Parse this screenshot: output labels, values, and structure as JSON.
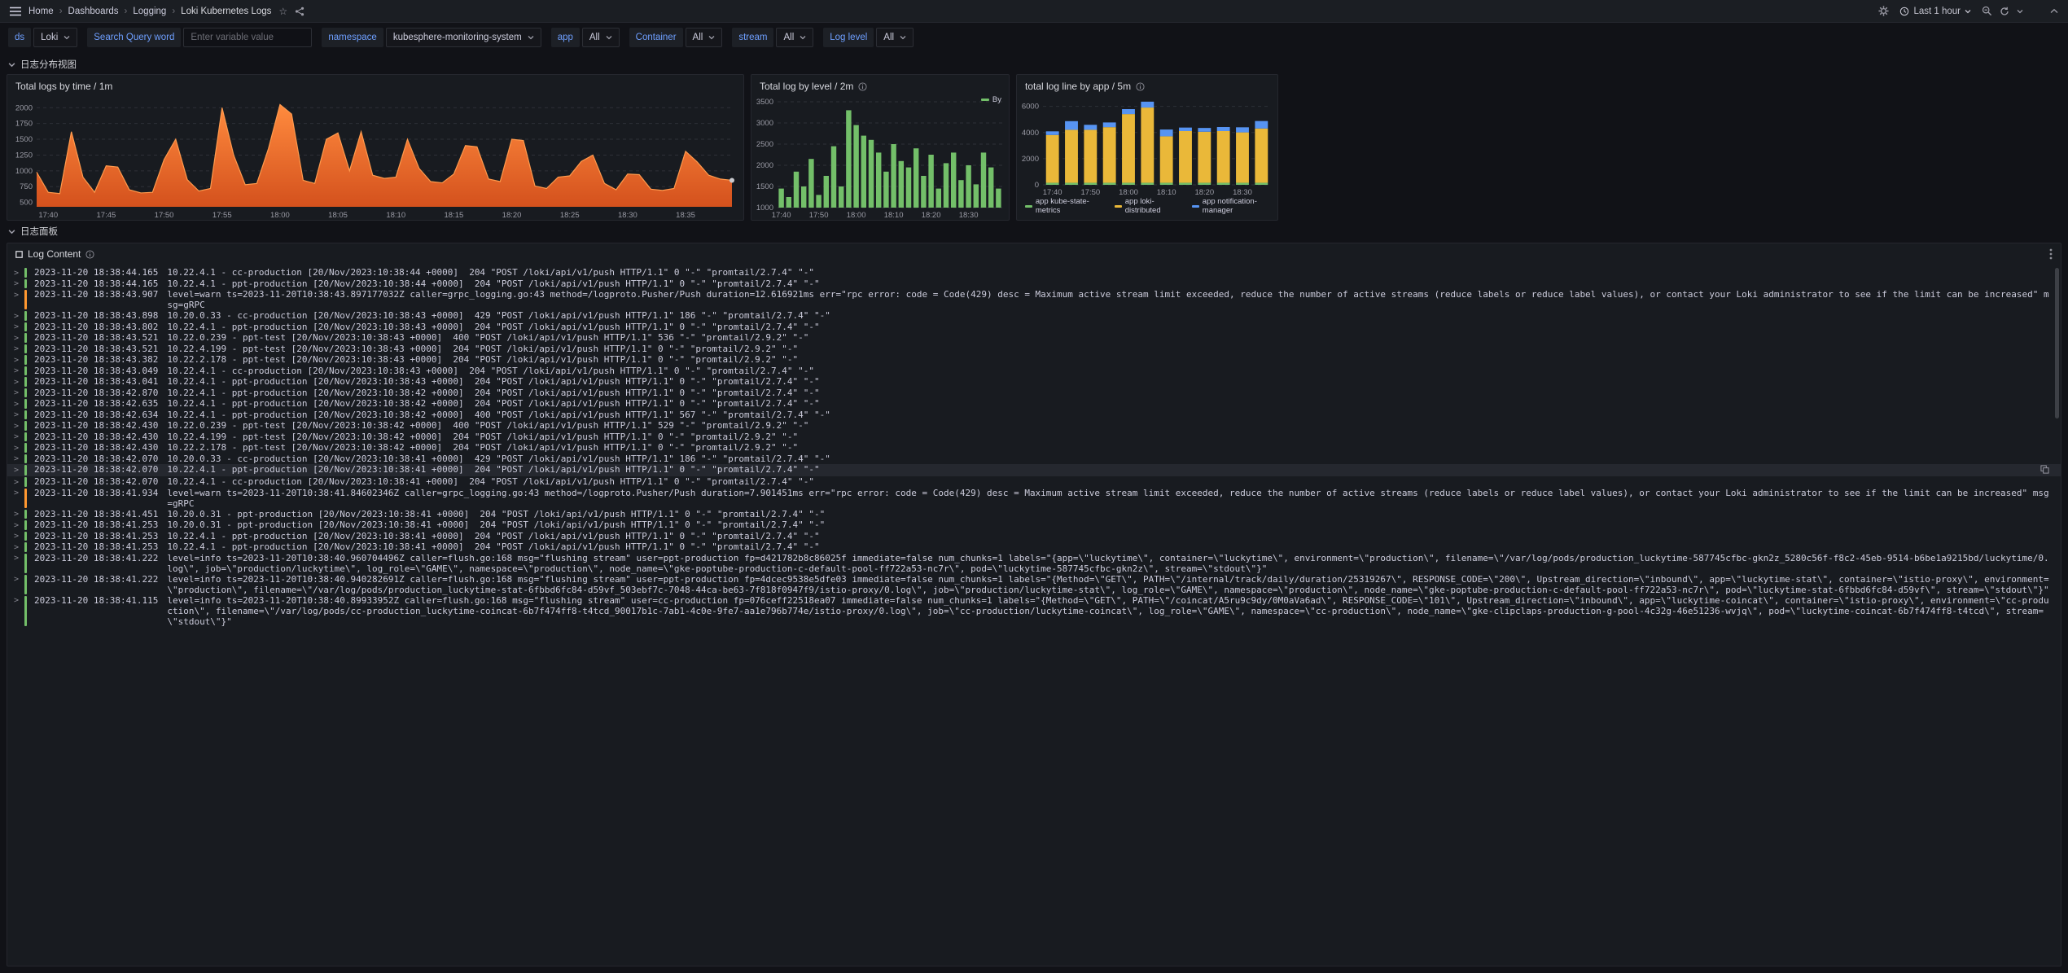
{
  "nav": {
    "breadcrumb": [
      "Home",
      "Dashboards",
      "Logging",
      "Loki Kubernetes Logs"
    ],
    "time_range": "Last 1 hour"
  },
  "filters": [
    {
      "label": "ds",
      "value": "Loki"
    },
    {
      "label": "Search Query word",
      "value": "",
      "placeholder": "Enter variable value"
    },
    {
      "label": "namespace",
      "value": "kubesphere-monitoring-system"
    },
    {
      "label": "app",
      "value": "All"
    },
    {
      "label": "Container",
      "value": "All"
    },
    {
      "label": "stream",
      "value": "All"
    },
    {
      "label": "Log level",
      "value": "All"
    }
  ],
  "rows": {
    "distribution": "日志分布视图",
    "logs": "日志面板"
  },
  "theme": {
    "accent_blue": "#6e9fff",
    "orange": "#ff780a",
    "green": "#73bf69",
    "yellow": "#eab839",
    "blue": "#5794f2",
    "warn_orange": "#ff9830"
  },
  "chart_data": [
    {
      "type": "area",
      "title": "Total logs by time / 1m",
      "x_ticks": [
        "17:40",
        "17:45",
        "17:50",
        "17:55",
        "18:00",
        "18:05",
        "18:10",
        "18:15",
        "18:20",
        "18:25",
        "18:30",
        "18:35"
      ],
      "x_tick_idx": [
        1,
        6,
        11,
        16,
        21,
        26,
        31,
        36,
        41,
        46,
        51,
        56
      ],
      "y_ticks": [
        500,
        750,
        1000,
        1250,
        1500,
        1750,
        2000
      ],
      "ylim": [
        430,
        2120
      ],
      "line_color": "#ff9a4d",
      "fill_color": "#ff780a",
      "values": [
        980,
        660,
        640,
        1620,
        900,
        660,
        1080,
        1060,
        700,
        650,
        660,
        1180,
        1500,
        860,
        680,
        720,
        2000,
        1250,
        780,
        800,
        1350,
        2050,
        1900,
        850,
        800,
        1500,
        1600,
        1000,
        1620,
        930,
        880,
        900,
        1500,
        1040,
        830,
        810,
        950,
        1400,
        1380,
        870,
        830,
        1500,
        1480,
        760,
        720,
        900,
        920,
        1150,
        1250,
        800,
        700,
        950,
        940,
        710,
        690,
        720,
        1310,
        1140,
        930,
        870,
        850
      ]
    },
    {
      "type": "bar",
      "title": "Total log by level / 2m",
      "legend": [
        {
          "label": "By",
          "color": "#73bf69"
        }
      ],
      "x_ticks": [
        "17:40",
        "17:50",
        "18:00",
        "18:10",
        "18:20",
        "18:30"
      ],
      "x_tick_idx": [
        0,
        5,
        10,
        15,
        20,
        25
      ],
      "y_ticks": [
        1000,
        1500,
        2000,
        2500,
        3000,
        3500
      ],
      "ylim": [
        1000,
        3500
      ],
      "color": "#73bf69",
      "values": [
        1450,
        1250,
        1850,
        1500,
        2150,
        1300,
        1750,
        2450,
        1500,
        3300,
        2950,
        2700,
        2600,
        2300,
        1850,
        2500,
        2100,
        1950,
        2400,
        1750,
        2250,
        1450,
        2050,
        2300,
        1650,
        2000,
        1550,
        2300,
        1950,
        1450
      ]
    },
    {
      "type": "stacked-bar",
      "title": "total log line by app / 5m",
      "x_ticks": [
        "17:40",
        "17:50",
        "18:00",
        "18:10",
        "18:20",
        "18:30"
      ],
      "x_tick_idx": [
        0,
        2,
        4,
        6,
        8,
        10
      ],
      "y_ticks": [
        0,
        2000,
        4000,
        6000
      ],
      "ylim": [
        0,
        6600
      ],
      "series": [
        {
          "name": "app kube-state-metrics",
          "color": "#73bf69",
          "values": [
            160,
            160,
            160,
            160,
            160,
            160,
            160,
            160,
            160,
            160,
            160,
            160
          ]
        },
        {
          "name": "app loki-distributed",
          "color": "#eab839",
          "values": [
            3650,
            4050,
            4050,
            4250,
            5250,
            5750,
            3550,
            3950,
            3900,
            3950,
            3850,
            4150
          ]
        },
        {
          "name": "app notification-manager",
          "color": "#5794f2",
          "values": [
            280,
            660,
            380,
            360,
            380,
            450,
            520,
            270,
            290,
            310,
            390,
            570
          ]
        }
      ]
    }
  ],
  "log_panel": {
    "title": "Log Content",
    "level_colors": {
      "info": "#73bf69",
      "warn": "#ff9830"
    },
    "entries": [
      {
        "ts": "2023-11-20 18:38:44.165",
        "level": "info",
        "text": "10.22.4.1 - cc-production [20/Nov/2023:10:38:44 +0000]  204 \"POST /loki/api/v1/push HTTP/1.1\" 0 \"-\" \"promtail/2.7.4\" \"-\""
      },
      {
        "ts": "2023-11-20 18:38:44.165",
        "level": "info",
        "text": "10.22.4.1 - ppt-production [20/Nov/2023:10:38:44 +0000]  204 \"POST /loki/api/v1/push HTTP/1.1\" 0 \"-\" \"promtail/2.7.4\" \"-\""
      },
      {
        "ts": "2023-11-20 18:38:43.907",
        "level": "warn",
        "text": "level=warn ts=2023-11-20T10:38:43.897177032Z caller=grpc_logging.go:43 method=/logproto.Pusher/Push duration=12.616921ms err=\"rpc error: code = Code(429) desc = Maximum active stream limit exceeded, reduce the number of active streams (reduce labels or reduce label values), or contact your Loki administrator to see if the limit can be increased\" msg=gRPC"
      },
      {
        "ts": "2023-11-20 18:38:43.898",
        "level": "info",
        "text": "10.20.0.33 - cc-production [20/Nov/2023:10:38:43 +0000]  429 \"POST /loki/api/v1/push HTTP/1.1\" 186 \"-\" \"promtail/2.7.4\" \"-\""
      },
      {
        "ts": "2023-11-20 18:38:43.802",
        "level": "info",
        "text": "10.22.4.1 - ppt-production [20/Nov/2023:10:38:43 +0000]  204 \"POST /loki/api/v1/push HTTP/1.1\" 0 \"-\" \"promtail/2.7.4\" \"-\""
      },
      {
        "ts": "2023-11-20 18:38:43.521",
        "level": "info",
        "text": "10.22.0.239 - ppt-test [20/Nov/2023:10:38:43 +0000]  400 \"POST /loki/api/v1/push HTTP/1.1\" 536 \"-\" \"promtail/2.9.2\" \"-\""
      },
      {
        "ts": "2023-11-20 18:38:43.521",
        "level": "info",
        "text": "10.22.4.199 - ppt-test [20/Nov/2023:10:38:43 +0000]  204 \"POST /loki/api/v1/push HTTP/1.1\" 0 \"-\" \"promtail/2.9.2\" \"-\""
      },
      {
        "ts": "2023-11-20 18:38:43.382",
        "level": "info",
        "text": "10.22.2.178 - ppt-test [20/Nov/2023:10:38:43 +0000]  204 \"POST /loki/api/v1/push HTTP/1.1\" 0 \"-\" \"promtail/2.9.2\" \"-\""
      },
      {
        "ts": "2023-11-20 18:38:43.049",
        "level": "info",
        "text": "10.22.4.1 - cc-production [20/Nov/2023:10:38:43 +0000]  204 \"POST /loki/api/v1/push HTTP/1.1\" 0 \"-\" \"promtail/2.7.4\" \"-\""
      },
      {
        "ts": "2023-11-20 18:38:43.041",
        "level": "info",
        "text": "10.22.4.1 - ppt-production [20/Nov/2023:10:38:43 +0000]  204 \"POST /loki/api/v1/push HTTP/1.1\" 0 \"-\" \"promtail/2.7.4\" \"-\""
      },
      {
        "ts": "2023-11-20 18:38:42.870",
        "level": "info",
        "text": "10.22.4.1 - ppt-production [20/Nov/2023:10:38:42 +0000]  204 \"POST /loki/api/v1/push HTTP/1.1\" 0 \"-\" \"promtail/2.7.4\" \"-\""
      },
      {
        "ts": "2023-11-20 18:38:42.635",
        "level": "info",
        "text": "10.22.4.1 - ppt-production [20/Nov/2023:10:38:42 +0000]  204 \"POST /loki/api/v1/push HTTP/1.1\" 0 \"-\" \"promtail/2.7.4\" \"-\""
      },
      {
        "ts": "2023-11-20 18:38:42.634",
        "level": "info",
        "text": "10.22.4.1 - ppt-production [20/Nov/2023:10:38:42 +0000]  400 \"POST /loki/api/v1/push HTTP/1.1\" 567 \"-\" \"promtail/2.7.4\" \"-\""
      },
      {
        "ts": "2023-11-20 18:38:42.430",
        "level": "info",
        "text": "10.22.0.239 - ppt-test [20/Nov/2023:10:38:42 +0000]  400 \"POST /loki/api/v1/push HTTP/1.1\" 529 \"-\" \"promtail/2.9.2\" \"-\""
      },
      {
        "ts": "2023-11-20 18:38:42.430",
        "level": "info",
        "text": "10.22.4.199 - ppt-test [20/Nov/2023:10:38:42 +0000]  204 \"POST /loki/api/v1/push HTTP/1.1\" 0 \"-\" \"promtail/2.9.2\" \"-\""
      },
      {
        "ts": "2023-11-20 18:38:42.430",
        "level": "info",
        "text": "10.22.2.178 - ppt-test [20/Nov/2023:10:38:42 +0000]  204 \"POST /loki/api/v1/push HTTP/1.1\" 0 \"-\" \"promtail/2.9.2\" \"-\""
      },
      {
        "ts": "2023-11-20 18:38:42.070",
        "level": "info",
        "text": "10.20.0.33 - cc-production [20/Nov/2023:10:38:41 +0000]  429 \"POST /loki/api/v1/push HTTP/1.1\" 186 \"-\" \"promtail/2.7.4\" \"-\""
      },
      {
        "ts": "2023-11-20 18:38:42.070",
        "level": "info",
        "highlight": true,
        "text": "10.22.4.1 - ppt-production [20/Nov/2023:10:38:41 +0000]  204 \"POST /loki/api/v1/push HTTP/1.1\" 0 \"-\" \"promtail/2.7.4\" \"-\""
      },
      {
        "ts": "2023-11-20 18:38:42.070",
        "level": "info",
        "text": "10.22.4.1 - cc-production [20/Nov/2023:10:38:41 +0000]  204 \"POST /loki/api/v1/push HTTP/1.1\" 0 \"-\" \"promtail/2.7.4\" \"-\""
      },
      {
        "ts": "2023-11-20 18:38:41.934",
        "level": "warn",
        "text": "level=warn ts=2023-11-20T10:38:41.84602346Z caller=grpc_logging.go:43 method=/logproto.Pusher/Push duration=7.901451ms err=\"rpc error: code = Code(429) desc = Maximum active stream limit exceeded, reduce the number of active streams (reduce labels or reduce label values), or contact your Loki administrator to see if the limit can be increased\" msg=gRPC"
      },
      {
        "ts": "2023-11-20 18:38:41.451",
        "level": "info",
        "text": "10.20.0.31 - ppt-production [20/Nov/2023:10:38:41 +0000]  204 \"POST /loki/api/v1/push HTTP/1.1\" 0 \"-\" \"promtail/2.7.4\" \"-\""
      },
      {
        "ts": "2023-11-20 18:38:41.253",
        "level": "info",
        "text": "10.20.0.31 - ppt-production [20/Nov/2023:10:38:41 +0000]  204 \"POST /loki/api/v1/push HTTP/1.1\" 0 \"-\" \"promtail/2.7.4\" \"-\""
      },
      {
        "ts": "2023-11-20 18:38:41.253",
        "level": "info",
        "text": "10.22.4.1 - ppt-production [20/Nov/2023:10:38:41 +0000]  204 \"POST /loki/api/v1/push HTTP/1.1\" 0 \"-\" \"promtail/2.7.4\" \"-\""
      },
      {
        "ts": "2023-11-20 18:38:41.253",
        "level": "info",
        "text": "10.22.4.1 - ppt-production [20/Nov/2023:10:38:41 +0000]  204 \"POST /loki/api/v1/push HTTP/1.1\" 0 \"-\" \"promtail/2.7.4\" \"-\""
      },
      {
        "ts": "2023-11-20 18:38:41.222",
        "level": "info",
        "text": "level=info ts=2023-11-20T10:38:40.960704496Z caller=flush.go:168 msg=\"flushing stream\" user=ppt-production fp=d421782b8c86025f immediate=false num_chunks=1 labels=\"{app=\\\"luckytime\\\", container=\\\"luckytime\\\", environment=\\\"production\\\", filename=\\\"/var/log/pods/production_luckytime-587745cfbc-gkn2z_5280c56f-f8c2-45eb-9514-b6be1a9215bd/luckytime/0.log\\\", job=\\\"production/luckytime\\\", log_role=\\\"GAME\\\", namespace=\\\"production\\\", node_name=\\\"gke-poptube-production-c-default-pool-ff722a53-nc7r\\\", pod=\\\"luckytime-587745cfbc-gkn2z\\\", stream=\\\"stdout\\\"}\""
      },
      {
        "ts": "2023-11-20 18:38:41.222",
        "level": "info",
        "text": "level=info ts=2023-11-20T10:38:40.940282691Z caller=flush.go:168 msg=\"flushing stream\" user=ppt-production fp=4dcec9538e5dfe03 immediate=false num_chunks=1 labels=\"{Method=\\\"GET\\\", PATH=\\\"/internal/track/daily/duration/25319267\\\", RESPONSE_CODE=\\\"200\\\", Upstream_direction=\\\"inbound\\\", app=\\\"luckytime-stat\\\", container=\\\"istio-proxy\\\", environment=\\\"production\\\", filename=\\\"/var/log/pods/production_luckytime-stat-6fbbd6fc84-d59vf_503ebf7c-7048-44ca-be63-7f818f0947f9/istio-proxy/0.log\\\", job=\\\"production/luckytime-stat\\\", log_role=\\\"GAME\\\", namespace=\\\"production\\\", node_name=\\\"gke-poptube-production-c-default-pool-ff722a53-nc7r\\\", pod=\\\"luckytime-stat-6fbbd6fc84-d59vf\\\", stream=\\\"stdout\\\"}\""
      },
      {
        "ts": "2023-11-20 18:38:41.115",
        "level": "info",
        "text": "level=info ts=2023-11-20T10:38:40.89933952Z caller=flush.go:168 msg=\"flushing stream\" user=cc-production fp=076ceff22518ea07 immediate=false num_chunks=1 labels=\"{Method=\\\"GET\\\", PATH=\\\"/coincat/A5ru9c9dy/0M0aVa6ad\\\", RESPONSE_CODE=\\\"101\\\", Upstream_direction=\\\"inbound\\\", app=\\\"luckytime-coincat\\\", container=\\\"istio-proxy\\\", environment=\\\"cc-production\\\", filename=\\\"/var/log/pods/cc-production_luckytime-coincat-6b7f474ff8-t4tcd_90017b1c-7ab1-4c0e-9fe7-aa1e796b774e/istio-proxy/0.log\\\", job=\\\"cc-production/luckytime-coincat\\\", log_role=\\\"GAME\\\", namespace=\\\"cc-production\\\", node_name=\\\"gke-clipclaps-production-g-pool-4c32g-46e51236-wvjq\\\", pod=\\\"luckytime-coincat-6b7f474ff8-t4tcd\\\", stream=\\\"stdout\\\"}\""
      }
    ]
  }
}
